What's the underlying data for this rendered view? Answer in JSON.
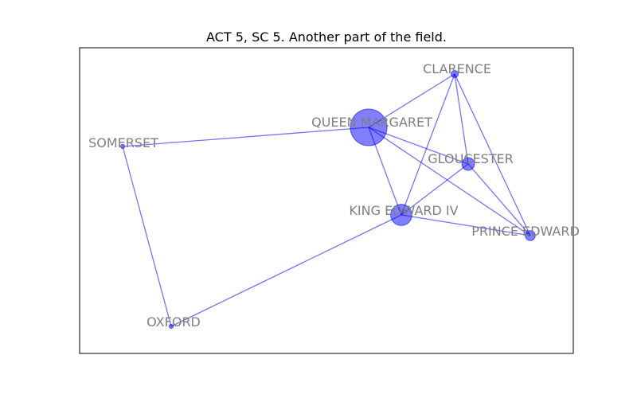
{
  "figure": {
    "title": "ACT 5, SC 5. Another part of the field."
  },
  "colors": {
    "node_fill": "#0000ff",
    "edge": "#0000ff",
    "label": "#7f7f7f",
    "frame": "#000000"
  },
  "nodes": [
    {
      "id": "queen-margaret",
      "label": "QUEEN MARGARET",
      "weight": 1.0
    },
    {
      "id": "king-edward-iv",
      "label": "KING EDWARD IV",
      "weight": 0.55
    },
    {
      "id": "gloucester",
      "label": "GLOUCESTER",
      "weight": 0.3
    },
    {
      "id": "prince-edward",
      "label": "PRINCE EDWARD",
      "weight": 0.22
    },
    {
      "id": "clarence",
      "label": "CLARENCE",
      "weight": 0.14
    },
    {
      "id": "somerset",
      "label": "SOMERSET",
      "weight": 0.05
    },
    {
      "id": "oxford",
      "label": "OXFORD",
      "weight": 0.05
    }
  ],
  "edges": [
    [
      "queen-margaret",
      "clarence"
    ],
    [
      "queen-margaret",
      "somerset"
    ],
    [
      "queen-margaret",
      "gloucester"
    ],
    [
      "queen-margaret",
      "king-edward-iv"
    ],
    [
      "queen-margaret",
      "prince-edward"
    ],
    [
      "clarence",
      "gloucester"
    ],
    [
      "clarence",
      "king-edward-iv"
    ],
    [
      "clarence",
      "prince-edward"
    ],
    [
      "gloucester",
      "king-edward-iv"
    ],
    [
      "gloucester",
      "prince-edward"
    ],
    [
      "king-edward-iv",
      "prince-edward"
    ],
    [
      "king-edward-iv",
      "oxford"
    ],
    [
      "somerset",
      "oxford"
    ]
  ]
}
